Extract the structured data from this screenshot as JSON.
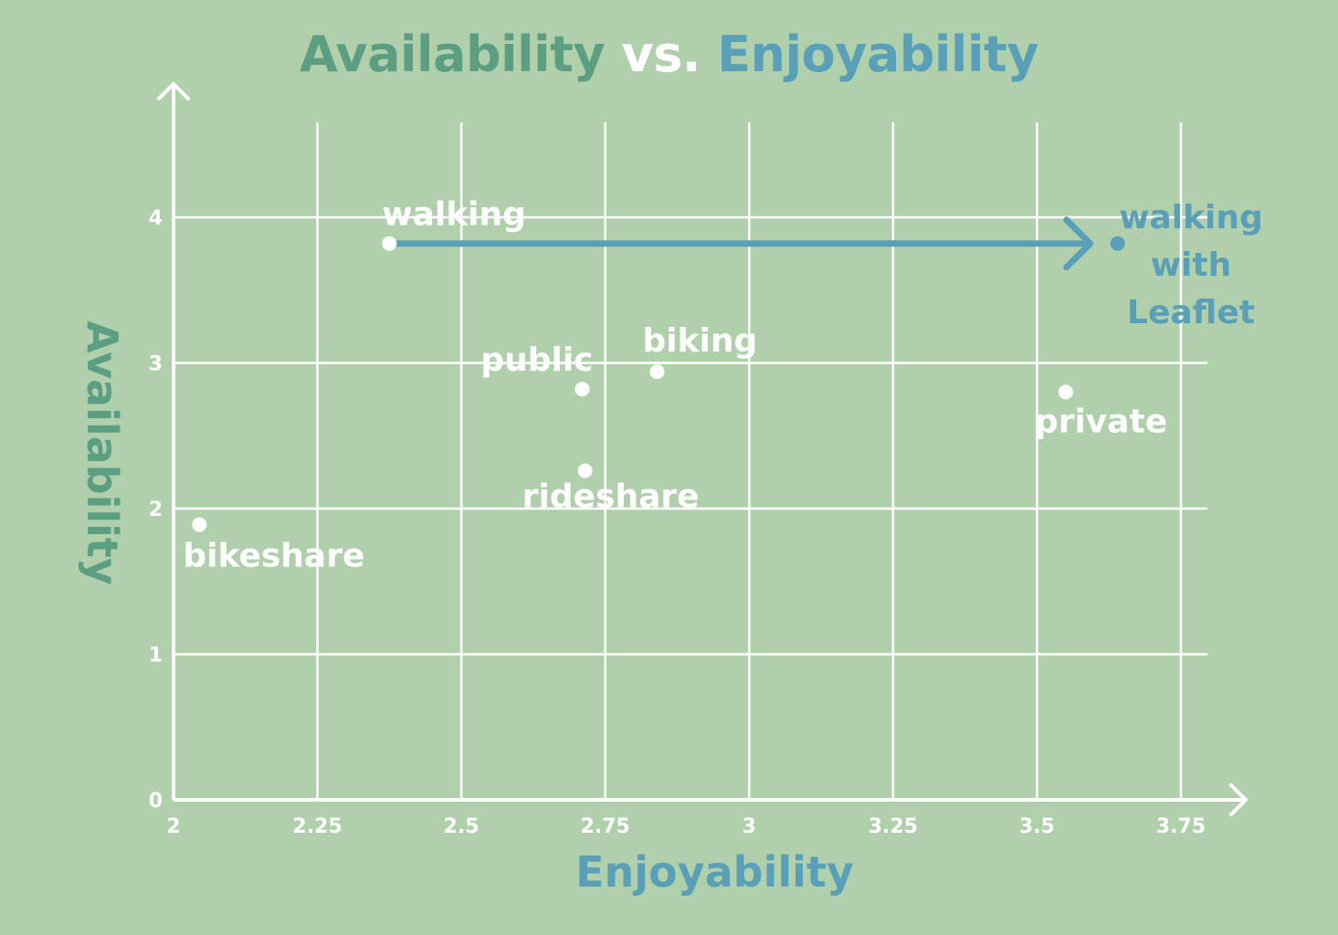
{
  "chart_data": {
    "type": "scatter",
    "title_parts": [
      "Availability",
      "vs.",
      "Enjoyability"
    ],
    "xlabel": "Enjoyability",
    "ylabel": "Availability",
    "xlim": [
      2,
      3.75
    ],
    "ylim": [
      0,
      4
    ],
    "x_ticks": [
      "2",
      "2.25",
      "2.5",
      "2.75",
      "3",
      "3.25",
      "3.5",
      "3.75"
    ],
    "y_ticks": [
      "0",
      "1",
      "2",
      "3",
      "4"
    ],
    "grid": true,
    "points": [
      {
        "label": "walking",
        "x": 2.375,
        "y": 3.82
      },
      {
        "label": "public",
        "x": 2.71,
        "y": 2.82
      },
      {
        "label": "biking",
        "x": 2.84,
        "y": 2.94
      },
      {
        "label": "rideshare",
        "x": 2.715,
        "y": 2.26
      },
      {
        "label": "bikeshare",
        "x": 2.045,
        "y": 1.89
      },
      {
        "label": "private",
        "x": 3.55,
        "y": 2.8
      }
    ],
    "highlight": {
      "label_lines": [
        "walking",
        "with",
        "Leaflet"
      ],
      "x": 3.64,
      "y": 3.82,
      "from_x": 2.375
    }
  },
  "colors": {
    "background": "#b0d0ac",
    "title_green": "#5c9e82",
    "title_blue": "#5a9fb8",
    "grid": "#ffffff",
    "arrow": "#5a9fb8"
  }
}
